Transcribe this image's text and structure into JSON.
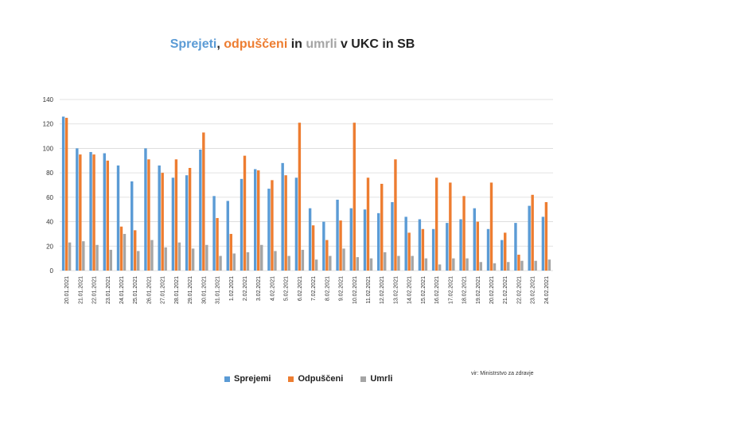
{
  "title": {
    "part1": "Sprejeti",
    "sep1": ", ",
    "part2": "odpuščeni",
    "sep2": " in ",
    "part3": "umrli",
    "rest": " v UKC in SB"
  },
  "colors": {
    "sprejemi": "#5B9BD5",
    "odpusceni": "#ED7D31",
    "umrli": "#A5A5A5",
    "title_dark": "#222222",
    "grid": "#d9d9d9"
  },
  "source": "vir: Ministrstvo za zdravje",
  "chart_data": {
    "type": "bar",
    "title": "Sprejeti, odpuščeni in umrli v UKC in SB",
    "xlabel": "",
    "ylabel": "",
    "ylim": [
      0,
      140
    ],
    "yticks": [
      0,
      20,
      40,
      60,
      80,
      100,
      120,
      140
    ],
    "grid": true,
    "legend_position": "bottom",
    "categories": [
      "20.01.2021",
      "21.01.2021",
      "22.01.2021",
      "23.01.2021",
      "24.01.2021",
      "25.01.2021",
      "26.01.2021",
      "27.01.2021",
      "28.01.2021",
      "29.01.2021",
      "30.01.2021",
      "31.01.2021",
      "1.02.2021",
      "2.02.2021",
      "3.02.2021",
      "4.02.2021",
      "5.02.2021",
      "6.02.2021",
      "7.02.2021",
      "8.02.2021",
      "9.02.2021",
      "10.02.2021",
      "11.02.2021",
      "12.02.2021",
      "13.02.2021",
      "14.02.2021",
      "15.02.2021",
      "16.02.2021",
      "17.02.2021",
      "18.02.2021",
      "19.02.2021",
      "20.02.2021",
      "21.02.2021",
      "22.02.2021",
      "23.02.2021",
      "24.02.2021"
    ],
    "series": [
      {
        "name": "Sprejemi",
        "values": [
          126,
          100,
          97,
          96,
          86,
          73,
          100,
          86,
          76,
          78,
          99,
          61,
          57,
          75,
          83,
          67,
          88,
          76,
          51,
          40,
          58,
          51,
          50,
          47,
          56,
          44,
          42,
          34,
          39,
          42,
          51,
          34,
          25,
          39,
          53,
          44
        ]
      },
      {
        "name": "Odpuščeni",
        "values": [
          125,
          95,
          95,
          90,
          36,
          33,
          91,
          80,
          91,
          84,
          113,
          43,
          30,
          94,
          82,
          74,
          78,
          121,
          37,
          25,
          41,
          121,
          76,
          71,
          91,
          31,
          34,
          76,
          72,
          61,
          40,
          72,
          31,
          13,
          62,
          56
        ]
      },
      {
        "name": "Umrli",
        "values": [
          23,
          24,
          21,
          17,
          30,
          16,
          25,
          19,
          23,
          18,
          21,
          12,
          14,
          15,
          21,
          16,
          12,
          17,
          9,
          12,
          18,
          11,
          10,
          15,
          12,
          12,
          10,
          5,
          10,
          10,
          7,
          6,
          7,
          8,
          8,
          9
        ]
      }
    ]
  }
}
